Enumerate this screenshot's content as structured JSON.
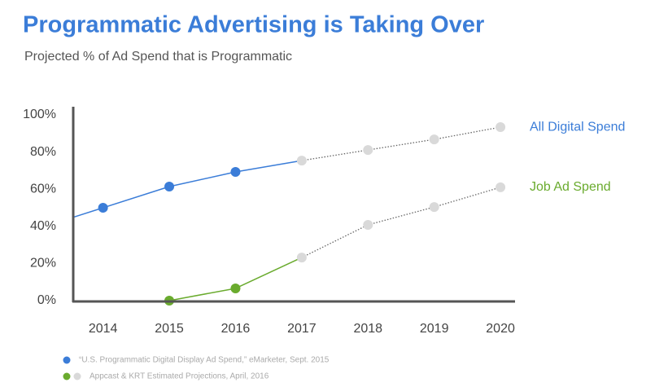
{
  "chart_data": {
    "type": "line",
    "title": "Programmatic Advertising is Taking Over",
    "subtitle": "Projected % of Ad Spend that is Programmatic",
    "x": [
      2014,
      2015,
      2016,
      2017,
      2018,
      2019,
      2020
    ],
    "xlim": [
      2013.55,
      2020.22
    ],
    "xticks": [
      2014,
      2015,
      2016,
      2017,
      2018,
      2019,
      2020
    ],
    "ylim": [
      0,
      100
    ],
    "yticks": [
      {
        "value": 0,
        "label": "0%"
      },
      {
        "value": 20,
        "label": "20%"
      },
      {
        "value": 40,
        "label": "40%"
      },
      {
        "value": 60,
        "label": "60%"
      },
      {
        "value": 80,
        "label": "80%"
      },
      {
        "value": 100,
        "label": "100%"
      }
    ],
    "projection_color": "#d9d9d9",
    "series": [
      {
        "name": "All Digital Spend",
        "color": "#3b7dd8",
        "values": [
          50,
          61.4,
          69.3,
          75.4,
          81.1,
          86.8,
          93.4
        ],
        "projected": [
          false,
          false,
          false,
          true,
          true,
          true,
          true
        ]
      },
      {
        "name": "Job Ad Spend",
        "color": "#6aab2e",
        "values": [
          null,
          0,
          6.6,
          23.2,
          40.8,
          50.4,
          61
        ],
        "projected": [
          false,
          false,
          false,
          true,
          true,
          true,
          true
        ]
      }
    ],
    "notes": [
      {
        "text": "“U.S. Programmatic Digital Display Ad Spend,” eMarketer, Sept. 2015",
        "colors": [
          "#3b7dd8"
        ]
      },
      {
        "text": "Appcast & KRT Estimated Projections, April, 2016",
        "colors": [
          "#6aab2e",
          "#d9d9d9"
        ]
      }
    ]
  }
}
